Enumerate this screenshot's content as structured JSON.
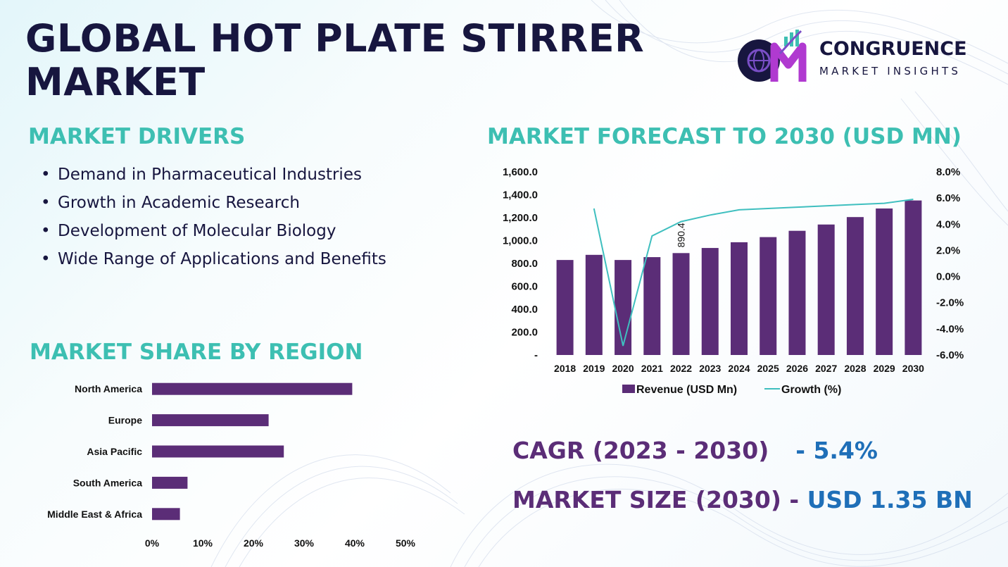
{
  "title": "GLOBAL HOT PLATE STIRRER MARKET",
  "logo": {
    "name": "CONGRUENCE",
    "subtitle": "MARKET INSIGHTS"
  },
  "drivers": {
    "heading": "MARKET DRIVERS",
    "items": [
      "Demand in Pharmaceutical Industries",
      "Growth in Academic Research",
      "Development of Molecular Biology",
      "Wide Range of Applications and Benefits"
    ]
  },
  "forecast_heading": "MARKET FORECAST TO 2030 (USD MN)",
  "region_heading": "MARKET SHARE BY REGION",
  "cagr": {
    "label": "CAGR (2023 - 2030)",
    "value": "- 5.4%"
  },
  "market_size": {
    "label": "MARKET SIZE (2030) -",
    "value": "USD 1.35 BN"
  },
  "colors": {
    "navy": "#17163f",
    "teal": "#3dbfb2",
    "bar": "#5b2d77",
    "line": "#3fbfbf",
    "value_blue": "#1f6fb8"
  },
  "chart_data": [
    {
      "type": "bar",
      "title": "",
      "categories": [
        "2018",
        "2019",
        "2020",
        "2021",
        "2022",
        "2023",
        "2024",
        "2025",
        "2026",
        "2027",
        "2028",
        "2029",
        "2030"
      ],
      "series": [
        {
          "name": "Revenue (USD Mn)",
          "axis": "left",
          "type": "bar",
          "values": [
            830,
            875,
            830,
            855,
            890.4,
            935,
            985,
            1030,
            1085,
            1140,
            1205,
            1280,
            1350
          ]
        },
        {
          "name": "Growth (%)",
          "axis": "right",
          "type": "line",
          "values": [
            null,
            5.2,
            -5.3,
            3.1,
            4.2,
            4.7,
            5.1,
            5.2,
            5.3,
            5.4,
            5.5,
            5.6,
            5.9
          ]
        }
      ],
      "data_labels": [
        {
          "category": "2022",
          "text": "890.4"
        }
      ],
      "y_left": {
        "range": [
          0,
          1600
        ],
        "ticks": [
          "-",
          "200.0",
          "400.0",
          "600.0",
          "800.0",
          "1,000.0",
          "1,200.0",
          "1,400.0",
          "1,600.0"
        ]
      },
      "y_right": {
        "range": [
          -6,
          8
        ],
        "ticks": [
          "-6.0%",
          "-4.0%",
          "-2.0%",
          "0.0%",
          "2.0%",
          "4.0%",
          "6.0%",
          "8.0%"
        ]
      },
      "legend": "bottom",
      "grid": false
    },
    {
      "type": "bar",
      "orientation": "horizontal",
      "title": "",
      "categories": [
        "North America",
        "Europe",
        "Asia Pacific",
        "South America",
        "Middle East & Africa"
      ],
      "values": [
        39.5,
        23,
        26,
        7,
        5.5
      ],
      "x_ticks": [
        "0%",
        "10%",
        "20%",
        "30%",
        "40%",
        "50%"
      ],
      "xlim": [
        0,
        50
      ],
      "grid": false
    }
  ]
}
